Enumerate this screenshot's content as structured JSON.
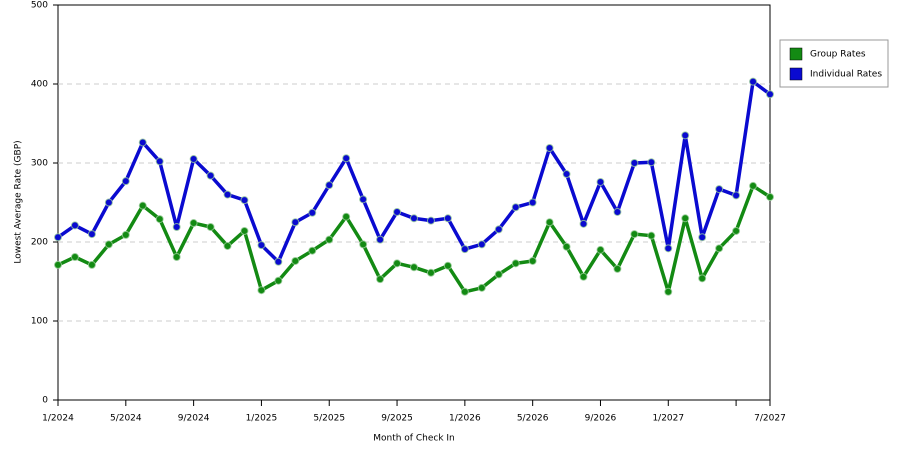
{
  "chart_data": {
    "type": "line",
    "x_label": "Month of Check In",
    "y_label": "Lowest Average Rate (GBP)",
    "categories": [
      "1/2024",
      null,
      null,
      null,
      "5/2024",
      null,
      null,
      null,
      "9/2024",
      null,
      null,
      null,
      "1/2025",
      null,
      null,
      null,
      "5/2025",
      null,
      null,
      null,
      "9/2025",
      null,
      null,
      null,
      "1/2026",
      null,
      null,
      null,
      "5/2026",
      null,
      null,
      null,
      "9/2026",
      null,
      null,
      null,
      "1/2027",
      null,
      null,
      null,
      null,
      null,
      "7/2027"
    ],
    "series": [
      {
        "name": "Group Rates",
        "color": "#138a13",
        "values": [
          171,
          181,
          171,
          197,
          209,
          246,
          229,
          181,
          224,
          219,
          195,
          214,
          139,
          151,
          176,
          189,
          203,
          232,
          197,
          153,
          173,
          168,
          161,
          170,
          137,
          142,
          159,
          173,
          176,
          225,
          194,
          156,
          190,
          166,
          210,
          208,
          137,
          230,
          154,
          192,
          214,
          271,
          257
        ]
      },
      {
        "name": "Individual Rates",
        "color": "#0a0ad0",
        "values": [
          206,
          221,
          210,
          250,
          277,
          326,
          302,
          219,
          305,
          284,
          260,
          253,
          196,
          175,
          225,
          237,
          272,
          306,
          254,
          203,
          238,
          230,
          227,
          230,
          191,
          197,
          216,
          244,
          250,
          319,
          286,
          223,
          276,
          238,
          300,
          301,
          192,
          335,
          206,
          267,
          259,
          403,
          387
        ]
      }
    ],
    "ylim": [
      0,
      500
    ],
    "yticks": [
      0,
      100,
      200,
      300,
      400,
      500
    ],
    "grid": true,
    "legend": "right"
  }
}
